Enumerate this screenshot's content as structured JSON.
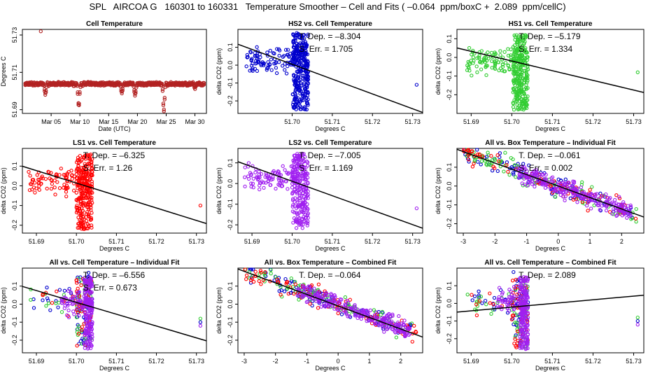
{
  "page": {
    "title": "SPL   AIRCOA G   160301 to 160331   Temperature Smoother – Cell and Fits ( –0.064  ppm/boxC +  2.089  ppm/cellC)"
  },
  "chart_data": [
    {
      "type": "scatter",
      "title": "Cell Temperature",
      "xlabel": "Date (UTC)",
      "ylabel": "Degrees C",
      "xlim": [
        0,
        32
      ],
      "ylim": [
        51.688,
        51.733
      ],
      "xticks": [
        {
          "v": 5,
          "label": "Mar 05"
        },
        {
          "v": 10,
          "label": "Mar 10"
        },
        {
          "v": 15,
          "label": "Mar 15"
        },
        {
          "v": 20,
          "label": "Mar 20"
        },
        {
          "v": 25,
          "label": "Mar 25"
        },
        {
          "v": 30,
          "label": "Mar 30"
        }
      ],
      "yticks": [
        {
          "v": 51.69,
          "label": "51.69"
        },
        {
          "v": 51.71,
          "label": "51.71"
        },
        {
          "v": 51.73,
          "label": "51.73"
        }
      ],
      "series": [
        {
          "name": "cell",
          "color": "#b22222",
          "kind": "timeseries",
          "base": 51.7033,
          "spread": 0.0008,
          "dips": [
            {
              "at": 4,
              "to": 51.698
            },
            {
              "at": 9.8,
              "to": 51.691
            },
            {
              "at": 17.3,
              "to": 51.699
            },
            {
              "at": 19.6,
              "to": 51.697
            },
            {
              "at": 24.6,
              "to": 51.689
            },
            {
              "at": 30,
              "to": 51.701
            }
          ],
          "outliers": [
            {
              "x": 3.2,
              "y": 51.732
            }
          ]
        }
      ]
    },
    {
      "type": "scatter",
      "title": "HS2 vs. Cell Temperature",
      "xlabel": "Degrees C",
      "ylabel": "delta CO2 (ppm)",
      "xlim": [
        51.6865,
        51.7325
      ],
      "ylim": [
        -0.27,
        0.2
      ],
      "xticks": [
        {
          "v": 51.7,
          "label": "51.70"
        },
        {
          "v": 51.71,
          "label": "51.71"
        },
        {
          "v": 51.72,
          "label": "51.72"
        },
        {
          "v": 51.73,
          "label": "51.73"
        }
      ],
      "yticks": [
        {
          "v": -0.2,
          "label": "-0.2"
        },
        {
          "v": -0.1,
          "label": "-0.1"
        },
        {
          "v": 0.0,
          "label": "0.0"
        },
        {
          "v": 0.1,
          "label": "0.1"
        }
      ],
      "annotation": [
        "T. Dep. = –8.304",
        "S. Err. = 1.705"
      ],
      "fit": {
        "slope": -8.304,
        "x0": 51.703,
        "y0": -0.02
      },
      "series": [
        {
          "name": "HS2",
          "color": "#0000cd",
          "kind": "cluster",
          "n": 420,
          "xc": [
            51.6885,
            51.704
          ],
          "yc": [
            -0.25,
            0.18
          ],
          "outliers": [
            {
              "x": 51.731,
              "y": -0.11
            }
          ]
        }
      ]
    },
    {
      "type": "scatter",
      "title": "HS1 vs. Cell Temperature",
      "xlabel": "Degrees C",
      "ylabel": "delta CO2 (ppm)",
      "xlim": [
        51.6865,
        51.7325
      ],
      "ylim": [
        -0.3,
        0.15
      ],
      "xticks": [
        {
          "v": 51.69,
          "label": "51.69"
        },
        {
          "v": 51.7,
          "label": "51.70"
        },
        {
          "v": 51.71,
          "label": "51.71"
        },
        {
          "v": 51.72,
          "label": "51.72"
        },
        {
          "v": 51.73,
          "label": "51.73"
        }
      ],
      "yticks": [
        {
          "v": -0.2,
          "label": "-0.2"
        },
        {
          "v": -0.1,
          "label": "-0.1"
        },
        {
          "v": 0.0,
          "label": "0.0"
        },
        {
          "v": 0.1,
          "label": "0.1"
        }
      ],
      "annotation": [
        "T. Dep. = –5.179",
        "S. Err. = 1.334"
      ],
      "fit": {
        "slope": -5.179,
        "x0": 51.703,
        "y0": -0.035
      },
      "series": [
        {
          "name": "HS1",
          "color": "#32cd32",
          "kind": "cluster",
          "n": 380,
          "xc": [
            51.689,
            51.704
          ],
          "yc": [
            -0.28,
            0.12
          ],
          "outliers": [
            {
              "x": 51.731,
              "y": -0.08
            }
          ]
        }
      ]
    },
    {
      "type": "scatter",
      "title": "LS1 vs. Cell Temperature",
      "xlabel": "Degrees C",
      "ylabel": "delta CO2 (ppm)",
      "xlim": [
        51.6865,
        51.7325
      ],
      "ylim": [
        -0.24,
        0.19
      ],
      "xticks": [
        {
          "v": 51.69,
          "label": "51.69"
        },
        {
          "v": 51.7,
          "label": "51.70"
        },
        {
          "v": 51.71,
          "label": "51.71"
        },
        {
          "v": 51.72,
          "label": "51.72"
        },
        {
          "v": 51.73,
          "label": "51.73"
        }
      ],
      "yticks": [
        {
          "v": -0.2,
          "label": "-0.2"
        },
        {
          "v": -0.1,
          "label": "-0.1"
        },
        {
          "v": 0.0,
          "label": "0.0"
        },
        {
          "v": 0.1,
          "label": "0.1"
        }
      ],
      "annotation": [
        "T. Dep. = –6.325",
        "S. Err. = 1.26"
      ],
      "fit": {
        "slope": -6.325,
        "x0": 51.703,
        "y0": -0.005
      },
      "series": [
        {
          "name": "LS1",
          "color": "#ff0000",
          "kind": "cluster",
          "n": 360,
          "xc": [
            51.688,
            51.704
          ],
          "yc": [
            -0.22,
            0.16
          ],
          "outliers": [
            {
              "x": 51.731,
              "y": -0.1
            }
          ]
        }
      ]
    },
    {
      "type": "scatter",
      "title": "LS2 vs. Cell Temperature",
      "xlabel": "Degrees C",
      "ylabel": "delta CO2 (ppm)",
      "xlim": [
        51.6865,
        51.7325
      ],
      "ylim": [
        -0.24,
        0.17
      ],
      "xticks": [
        {
          "v": 51.69,
          "label": "51.69"
        },
        {
          "v": 51.7,
          "label": "51.70"
        },
        {
          "v": 51.71,
          "label": "51.71"
        },
        {
          "v": 51.72,
          "label": "51.72"
        },
        {
          "v": 51.73,
          "label": "51.73"
        }
      ],
      "yticks": [
        {
          "v": -0.2,
          "label": "-0.2"
        },
        {
          "v": -0.1,
          "label": "-0.1"
        },
        {
          "v": 0.0,
          "label": "0.0"
        },
        {
          "v": 0.1,
          "label": "0.1"
        }
      ],
      "annotation": [
        "T. Dep. = –7.005",
        "S. Err. = 1.169"
      ],
      "fit": {
        "slope": -7.005,
        "x0": 51.703,
        "y0": -0.01
      },
      "series": [
        {
          "name": "LS2",
          "color": "#a020f0",
          "kind": "cluster",
          "n": 340,
          "xc": [
            51.688,
            51.704
          ],
          "yc": [
            -0.22,
            0.15
          ],
          "outliers": [
            {
              "x": 51.731,
              "y": -0.12
            }
          ]
        }
      ]
    },
    {
      "type": "scatter",
      "title": "All vs. Box Temperature – Individual Fit",
      "xlabel": "Degrees C",
      "ylabel": "delta CO2 (ppm)",
      "xlim": [
        -3.2,
        2.7
      ],
      "ylim": [
        -0.25,
        0.2
      ],
      "xticks": [
        {
          "v": -3,
          "label": "-3"
        },
        {
          "v": -2,
          "label": "-2"
        },
        {
          "v": -1,
          "label": "-1"
        },
        {
          "v": 0,
          "label": "0"
        },
        {
          "v": 1,
          "label": "1"
        },
        {
          "v": 2,
          "label": "2"
        }
      ],
      "yticks": [
        {
          "v": -0.2,
          "label": "-0.2"
        },
        {
          "v": -0.1,
          "label": "-0.1"
        },
        {
          "v": 0.0,
          "label": "0.0"
        },
        {
          "v": 0.1,
          "label": "0.1"
        }
      ],
      "annotation": [
        "T. Dep. = –0.061",
        "S. Err. = 0.002"
      ],
      "fit": {
        "slope": -0.061,
        "x0": 0,
        "y0": 0.0
      },
      "series": [
        {
          "name": "HS2",
          "color": "#0000cd",
          "kind": "band",
          "n": 90,
          "xr": [
            -3,
            2.5
          ],
          "slope": -0.061,
          "spread": 0.06
        },
        {
          "name": "HS1",
          "color": "#32cd32",
          "kind": "band",
          "n": 90,
          "xr": [
            -3,
            2.5
          ],
          "slope": -0.061,
          "spread": 0.06
        },
        {
          "name": "LS1",
          "color": "#ff0000",
          "kind": "band",
          "n": 90,
          "xr": [
            -3,
            2.5
          ],
          "slope": -0.061,
          "spread": 0.06
        },
        {
          "name": "LS2",
          "color": "#a020f0",
          "kind": "band",
          "n": 260,
          "xr": [
            -1.3,
            2.3
          ],
          "slope": -0.061,
          "spread": 0.05
        }
      ]
    },
    {
      "type": "scatter",
      "title": "All vs. Cell Temperature – Individual Fit",
      "xlabel": "Degrees C",
      "ylabel": "delta CO2 (ppm)",
      "xlim": [
        51.6865,
        51.7325
      ],
      "ylim": [
        -0.27,
        0.2
      ],
      "xticks": [
        {
          "v": 51.69,
          "label": "51.69"
        },
        {
          "v": 51.7,
          "label": "51.70"
        },
        {
          "v": 51.71,
          "label": "51.71"
        },
        {
          "v": 51.72,
          "label": "51.72"
        },
        {
          "v": 51.73,
          "label": "51.73"
        }
      ],
      "yticks": [
        {
          "v": -0.2,
          "label": "-0.2"
        },
        {
          "v": -0.1,
          "label": "-0.1"
        },
        {
          "v": 0.0,
          "label": "0.0"
        },
        {
          "v": 0.1,
          "label": "0.1"
        }
      ],
      "annotation": [
        "T. Dep. = –6.556",
        "S. Err. = 0.673"
      ],
      "fit": {
        "slope": -6.556,
        "x0": 51.703,
        "y0": -0.01
      },
      "series": [
        {
          "name": "HS2",
          "color": "#0000cd",
          "kind": "cluster",
          "n": 60,
          "xc": [
            51.688,
            51.704
          ],
          "yc": [
            -0.24,
            0.18
          ],
          "outliers": [
            {
              "x": 51.731,
              "y": -0.1
            }
          ]
        },
        {
          "name": "HS1",
          "color": "#32cd32",
          "kind": "cluster",
          "n": 60,
          "xc": [
            51.688,
            51.704
          ],
          "yc": [
            -0.24,
            0.15
          ],
          "outliers": [
            {
              "x": 51.731,
              "y": -0.08
            }
          ]
        },
        {
          "name": "LS1",
          "color": "#ff0000",
          "kind": "cluster",
          "n": 60,
          "xc": [
            51.688,
            51.704
          ],
          "yc": [
            -0.24,
            0.15
          ],
          "outliers": []
        },
        {
          "name": "LS2",
          "color": "#a020f0",
          "kind": "cluster",
          "n": 240,
          "xc": [
            51.696,
            51.704
          ],
          "yc": [
            -0.25,
            0.15
          ],
          "outliers": [
            {
              "x": 51.731,
              "y": -0.12
            }
          ]
        }
      ]
    },
    {
      "type": "scatter",
      "title": "All vs. Box Temperature – Combined Fit",
      "xlabel": "Degrees C",
      "ylabel": "delta CO2 (ppm)",
      "xlim": [
        -3.2,
        2.7
      ],
      "ylim": [
        -0.27,
        0.2
      ],
      "xticks": [
        {
          "v": -3,
          "label": "-3"
        },
        {
          "v": -2,
          "label": "-2"
        },
        {
          "v": -1,
          "label": "-1"
        },
        {
          "v": 0,
          "label": "0"
        },
        {
          "v": 1,
          "label": "1"
        },
        {
          "v": 2,
          "label": "2"
        }
      ],
      "yticks": [
        {
          "v": -0.2,
          "label": "-0.2"
        },
        {
          "v": -0.1,
          "label": "-0.1"
        },
        {
          "v": 0.0,
          "label": "0.0"
        },
        {
          "v": 0.1,
          "label": "0.1"
        }
      ],
      "annotation": [
        "T. Dep. = –0.064"
      ],
      "fit": {
        "slope": -0.064,
        "x0": 0,
        "y0": -0.01
      },
      "series": [
        {
          "name": "HS2",
          "color": "#0000cd",
          "kind": "band",
          "n": 90,
          "xr": [
            -3,
            2.5
          ],
          "slope": -0.064,
          "spread": 0.06
        },
        {
          "name": "HS1",
          "color": "#32cd32",
          "kind": "band",
          "n": 90,
          "xr": [
            -3,
            2.5
          ],
          "slope": -0.064,
          "spread": 0.06
        },
        {
          "name": "LS1",
          "color": "#ff0000",
          "kind": "band",
          "n": 90,
          "xr": [
            -3,
            2.5
          ],
          "slope": -0.064,
          "spread": 0.06
        },
        {
          "name": "LS2",
          "color": "#a020f0",
          "kind": "band",
          "n": 260,
          "xr": [
            -1.3,
            2.3
          ],
          "slope": -0.064,
          "spread": 0.05
        }
      ]
    },
    {
      "type": "scatter",
      "title": "All vs. Cell Temperature – Combined Fit",
      "xlabel": "Degrees C",
      "ylabel": "delta CO2 (ppm)",
      "xlim": [
        51.6865,
        51.7325
      ],
      "ylim": [
        -0.28,
        0.2
      ],
      "xticks": [
        {
          "v": 51.69,
          "label": "51.69"
        },
        {
          "v": 51.7,
          "label": "51.70"
        },
        {
          "v": 51.71,
          "label": "51.71"
        },
        {
          "v": 51.72,
          "label": "51.72"
        },
        {
          "v": 51.73,
          "label": "51.73"
        }
      ],
      "yticks": [
        {
          "v": -0.2,
          "label": "-0.2"
        },
        {
          "v": -0.1,
          "label": "-0.1"
        },
        {
          "v": 0.0,
          "label": "0.0"
        },
        {
          "v": 0.1,
          "label": "0.1"
        }
      ],
      "annotation": [
        "T. Dep. = 2.089"
      ],
      "fit": {
        "slope": 2.089,
        "x0": 51.703,
        "y0": -0.015
      },
      "series": [
        {
          "name": "HS2",
          "color": "#0000cd",
          "kind": "cluster",
          "n": 60,
          "xc": [
            51.688,
            51.704
          ],
          "yc": [
            -0.25,
            0.18
          ],
          "outliers": [
            {
              "x": 51.731,
              "y": -0.1
            }
          ]
        },
        {
          "name": "HS1",
          "color": "#32cd32",
          "kind": "cluster",
          "n": 60,
          "xc": [
            51.688,
            51.704
          ],
          "yc": [
            -0.25,
            0.15
          ],
          "outliers": [
            {
              "x": 51.731,
              "y": -0.08
            }
          ]
        },
        {
          "name": "LS1",
          "color": "#ff0000",
          "kind": "cluster",
          "n": 60,
          "xc": [
            51.688,
            51.704
          ],
          "yc": [
            -0.26,
            0.15
          ],
          "outliers": []
        },
        {
          "name": "LS2",
          "color": "#a020f0",
          "kind": "cluster",
          "n": 240,
          "xc": [
            51.696,
            51.704
          ],
          "yc": [
            -0.26,
            0.15
          ],
          "outliers": [
            {
              "x": 51.731,
              "y": -0.12
            }
          ]
        }
      ]
    }
  ]
}
